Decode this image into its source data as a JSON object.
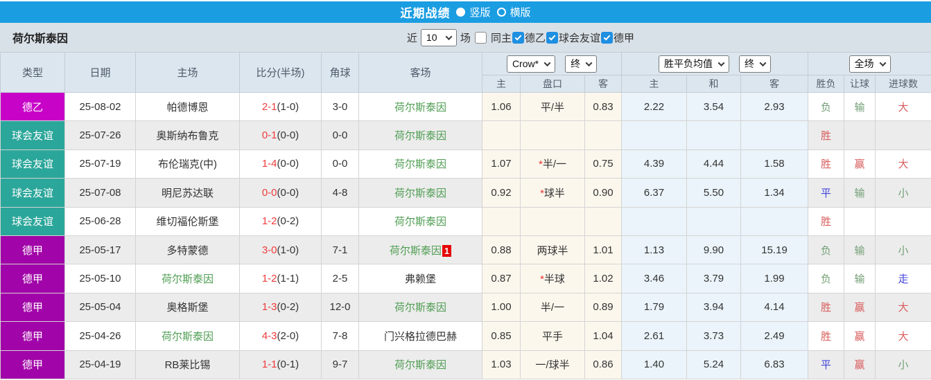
{
  "titlebar": {
    "title": "近期战绩",
    "vertical_label": "竖版",
    "horizontal_label": "横版",
    "selected_layout": "竖版",
    "bar_color": "#1b9de2"
  },
  "filterbar": {
    "team": "荷尔斯泰因",
    "recent_label": "近",
    "recent_value": "10",
    "games_label": "场",
    "checkboxes": [
      {
        "label": "同主",
        "checked": false
      },
      {
        "label": "德乙",
        "checked": true
      },
      {
        "label": "球会友谊",
        "checked": true
      },
      {
        "label": "德甲",
        "checked": true
      }
    ]
  },
  "table": {
    "selects": {
      "company": "Crow*",
      "company_time": "终",
      "avg": "胜平负均值",
      "avg_time": "终",
      "scope": "全场"
    },
    "headers": {
      "type": "类型",
      "date": "日期",
      "home": "主场",
      "score": "比分(半场)",
      "corner": "角球",
      "away": "客场",
      "odds_home": "主",
      "odds_handicap": "盘口",
      "odds_away": "客",
      "avg_home": "主",
      "avg_draw": "和",
      "avg_away": "客",
      "result_wdl": "胜负",
      "result_handicap": "让球",
      "result_goals": "进球数"
    },
    "league_colors": {
      "德乙": "#c803c8",
      "球会友谊": "#2ba69a",
      "德甲": "#a104a8"
    },
    "result_colors": {
      "胜": "#d95c5c",
      "赢": "#d95c5c",
      "大": "#d95c5c",
      "负": "#74a076",
      "输": "#74a076",
      "小": "#74a076",
      "平": "#4343dd",
      "走": "#4d4df0"
    },
    "accent": {
      "score_red": "#f03b3b",
      "subject_team_green": "#4e9d52",
      "badge_red": "#e60000"
    },
    "rows": [
      {
        "league": "德乙",
        "date": "25-08-02",
        "home": "帕德博恩",
        "home_subject": false,
        "score": "2-1",
        "half": "(1-0)",
        "corner": "3-0",
        "away": "荷尔斯泰因",
        "away_subject": true,
        "away_badge": "",
        "odds_home": "1.06",
        "handicap": "平/半",
        "handicap_star": false,
        "odds_away": "0.83",
        "avg_home": "2.22",
        "avg_draw": "3.54",
        "avg_away": "2.93",
        "wdl": "负",
        "rq": "输",
        "jq": "大"
      },
      {
        "league": "球会友谊",
        "date": "25-07-26",
        "home": "奥斯纳布鲁克",
        "home_subject": false,
        "score": "0-1",
        "half": "(0-0)",
        "corner": "0-0",
        "away": "荷尔斯泰因",
        "away_subject": true,
        "away_badge": "",
        "odds_home": "",
        "handicap": "",
        "handicap_star": false,
        "odds_away": "",
        "avg_home": "",
        "avg_draw": "",
        "avg_away": "",
        "wdl": "胜",
        "rq": "",
        "jq": ""
      },
      {
        "league": "球会友谊",
        "date": "25-07-19",
        "home": "布伦瑞克(中)",
        "home_subject": false,
        "score": "1-4",
        "half": "(0-0)",
        "corner": "0-0",
        "away": "荷尔斯泰因",
        "away_subject": true,
        "away_badge": "",
        "odds_home": "1.07",
        "handicap": "半/一",
        "handicap_star": true,
        "odds_away": "0.75",
        "avg_home": "4.39",
        "avg_draw": "4.44",
        "avg_away": "1.58",
        "wdl": "胜",
        "rq": "赢",
        "jq": "大"
      },
      {
        "league": "球会友谊",
        "date": "25-07-08",
        "home": "明尼苏达联",
        "home_subject": false,
        "score": "0-0",
        "half": "(0-0)",
        "corner": "4-8",
        "away": "荷尔斯泰因",
        "away_subject": true,
        "away_badge": "",
        "odds_home": "0.92",
        "handicap": "球半",
        "handicap_star": true,
        "odds_away": "0.90",
        "avg_home": "6.37",
        "avg_draw": "5.50",
        "avg_away": "1.34",
        "wdl": "平",
        "rq": "输",
        "jq": "小"
      },
      {
        "league": "球会友谊",
        "date": "25-06-28",
        "home": "维切福伦斯堡",
        "home_subject": false,
        "score": "1-2",
        "half": "(0-2)",
        "corner": "",
        "away": "荷尔斯泰因",
        "away_subject": true,
        "away_badge": "",
        "odds_home": "",
        "handicap": "",
        "handicap_star": false,
        "odds_away": "",
        "avg_home": "",
        "avg_draw": "",
        "avg_away": "",
        "wdl": "胜",
        "rq": "",
        "jq": ""
      },
      {
        "league": "德甲",
        "date": "25-05-17",
        "home": "多特蒙德",
        "home_subject": false,
        "score": "3-0",
        "half": "(1-0)",
        "corner": "7-1",
        "away": "荷尔斯泰因",
        "away_subject": true,
        "away_badge": "1",
        "odds_home": "0.88",
        "handicap": "两球半",
        "handicap_star": false,
        "odds_away": "1.01",
        "avg_home": "1.13",
        "avg_draw": "9.90",
        "avg_away": "15.19",
        "wdl": "负",
        "rq": "输",
        "jq": "小"
      },
      {
        "league": "德甲",
        "date": "25-05-10",
        "home": "荷尔斯泰因",
        "home_subject": true,
        "score": "1-2",
        "half": "(1-1)",
        "corner": "2-5",
        "away": "弗赖堡",
        "away_subject": false,
        "away_badge": "",
        "odds_home": "0.87",
        "handicap": "半球",
        "handicap_star": true,
        "odds_away": "1.02",
        "avg_home": "3.46",
        "avg_draw": "3.79",
        "avg_away": "1.99",
        "wdl": "负",
        "rq": "输",
        "jq": "走"
      },
      {
        "league": "德甲",
        "date": "25-05-04",
        "home": "奥格斯堡",
        "home_subject": false,
        "score": "1-3",
        "half": "(0-2)",
        "corner": "12-0",
        "away": "荷尔斯泰因",
        "away_subject": true,
        "away_badge": "",
        "odds_home": "1.00",
        "handicap": "半/一",
        "handicap_star": false,
        "odds_away": "0.89",
        "avg_home": "1.79",
        "avg_draw": "3.94",
        "avg_away": "4.14",
        "wdl": "胜",
        "rq": "赢",
        "jq": "大"
      },
      {
        "league": "德甲",
        "date": "25-04-26",
        "home": "荷尔斯泰因",
        "home_subject": true,
        "score": "4-3",
        "half": "(2-0)",
        "corner": "7-8",
        "away": "门兴格拉德巴赫",
        "away_subject": false,
        "away_badge": "",
        "odds_home": "0.85",
        "handicap": "平手",
        "handicap_star": false,
        "odds_away": "1.04",
        "avg_home": "2.61",
        "avg_draw": "3.73",
        "avg_away": "2.49",
        "wdl": "胜",
        "rq": "赢",
        "jq": "大"
      },
      {
        "league": "德甲",
        "date": "25-04-19",
        "home": "RB莱比锡",
        "home_subject": false,
        "score": "1-1",
        "half": "(0-1)",
        "corner": "9-7",
        "away": "荷尔斯泰因",
        "away_subject": true,
        "away_badge": "",
        "odds_home": "1.03",
        "handicap": "一/球半",
        "handicap_star": false,
        "odds_away": "0.86",
        "avg_home": "1.40",
        "avg_draw": "5.24",
        "avg_away": "6.83",
        "wdl": "平",
        "rq": "赢",
        "jq": "小"
      }
    ]
  }
}
